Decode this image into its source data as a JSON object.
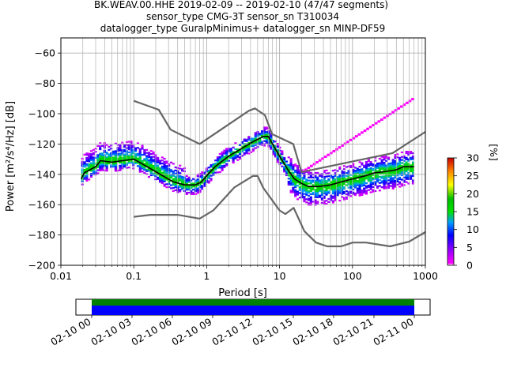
{
  "chart_data": [
    {
      "type": "heatmap",
      "title_lines": [
        "BK.WEAV.00.HHE   2019-02-09 -- 2019-02-10  (47/47 segments)",
        "sensor_type CMG-3T sensor_sn T310034",
        "datalogger_type GuralpMinimus+ datalogger_sn MINP-DF59"
      ],
      "xlabel": "Period [s]",
      "ylabel": "Power [m²/s⁴/Hz] [dB]",
      "xscale": "log",
      "xlim": [
        0.01,
        1000
      ],
      "ylim": [
        -200,
        -50
      ],
      "xtick_labels": [
        "0.01",
        "0.1",
        "1",
        "10",
        "100",
        "1000"
      ],
      "xtick_values": [
        0.01,
        0.1,
        1,
        10,
        100,
        1000
      ],
      "ytick_values": [
        -60,
        -80,
        -100,
        -120,
        -140,
        -160,
        -180,
        -200
      ],
      "ytick_labels": [
        "−60",
        "−80",
        "−100",
        "−120",
        "−140",
        "−160",
        "−180",
        "−200"
      ],
      "grid": true,
      "colorbar": {
        "label": "[%]",
        "range": [
          0,
          30
        ],
        "tick_values": [
          0,
          5,
          10,
          15,
          20,
          25,
          30
        ],
        "tick_labels": [
          "0",
          "5",
          "10",
          "15",
          "20",
          "25",
          "30"
        ]
      },
      "mode_line": {
        "name": "mode",
        "x": [
          0.019,
          0.021,
          0.025,
          0.03,
          0.035,
          0.05,
          0.07,
          0.1,
          0.13,
          0.18,
          0.25,
          0.35,
          0.5,
          0.7,
          0.85,
          1.0,
          1.3,
          2.0,
          3.0,
          4.5,
          6.0,
          7.0,
          8.0,
          10.0,
          13.0,
          16.0,
          20.0,
          25.0,
          35.0,
          50.0,
          70.0,
          100.0,
          150.0,
          200.0,
          300.0,
          400.0,
          500.0,
          700.0
        ],
        "y": [
          -143,
          -139,
          -137,
          -135,
          -131,
          -132,
          -131,
          -130,
          -133,
          -137,
          -141,
          -145,
          -147,
          -147,
          -145,
          -141,
          -135,
          -128,
          -123,
          -118,
          -115,
          -115,
          -120,
          -128,
          -137,
          -143,
          -146,
          -148,
          -148,
          -147,
          -145,
          -143,
          -141,
          -139,
          -138,
          -137,
          -135,
          -135
        ]
      },
      "noise_model_high": {
        "x": [
          0.1,
          0.22,
          0.32,
          0.8,
          3.8,
          4.6,
          6.3,
          7.9,
          15.4,
          20.0,
          354.8,
          1000.0
        ],
        "y": [
          -91.5,
          -97.4,
          -110.5,
          -120.0,
          -98.0,
          -96.5,
          -101.0,
          -113.5,
          -120.0,
          -138.5,
          -126.0,
          -112.0
        ]
      },
      "noise_model_low": {
        "x": [
          0.1,
          0.17,
          0.4,
          0.8,
          1.24,
          2.4,
          4.3,
          5.0,
          6.0,
          10.0,
          12.0,
          15.6,
          21.9,
          31.6,
          45.0,
          70.0,
          101.0,
          154.0,
          328.0,
          600.0,
          1000.0
        ],
        "y": [
          -168.0,
          -166.7,
          -166.7,
          -169.2,
          -163.7,
          -148.6,
          -141.1,
          -141.1,
          -149.0,
          -163.8,
          -166.2,
          -162.1,
          -177.5,
          -185.0,
          -187.5,
          -187.5,
          -185.0,
          -185.0,
          -187.5,
          -184.4,
          -178.0
        ]
      },
      "data_coverage": {
        "ticks": [
          "02-10 00",
          "02-10 03",
          "02-10 06",
          "02-10 09",
          "02-10 12",
          "02-10 15",
          "02-10 18",
          "02-10 21",
          "02-11 00"
        ],
        "bars": [
          {
            "name": "data",
            "color": "#0000ff",
            "start_hour": 0,
            "end_hour": 24
          },
          {
            "name": "used",
            "color": "#008000",
            "start_hour": 0,
            "end_hour": 24
          }
        ]
      }
    }
  ]
}
